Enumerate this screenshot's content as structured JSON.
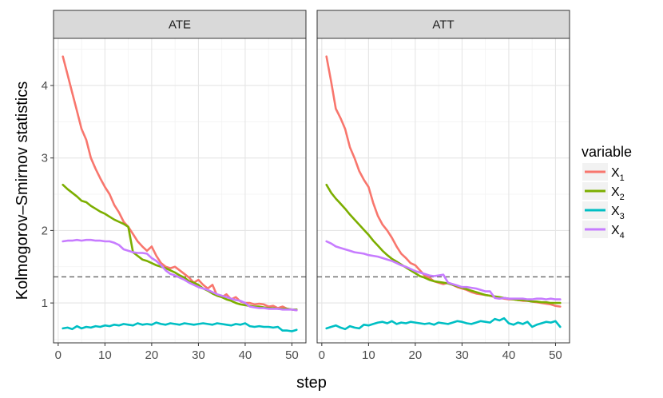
{
  "chart_data": {
    "type": "line",
    "xlabel": "step",
    "ylabel": "Kolmogorov–Smirnov statistics",
    "xlim": [
      -1,
      53
    ],
    "ylim": [
      0.45,
      4.65
    ],
    "x_ticks": [
      0,
      10,
      20,
      30,
      40,
      50
    ],
    "y_ticks": [
      1,
      2,
      3,
      4
    ],
    "threshold": 1.36,
    "legend": {
      "title": "variable",
      "entries": [
        {
          "name": "X",
          "sub": "1",
          "color": "#F8766D"
        },
        {
          "name": "X",
          "sub": "2",
          "color": "#7CAE00"
        },
        {
          "name": "X",
          "sub": "3",
          "color": "#00BFC4"
        },
        {
          "name": "X",
          "sub": "4",
          "color": "#C77CFF"
        }
      ]
    },
    "panels": [
      {
        "title": "ATE",
        "series": [
          {
            "name": "X1",
            "color": "#F8766D",
            "values": [
              4.4,
              4.15,
              3.9,
              3.65,
              3.4,
              3.25,
              3.0,
              2.85,
              2.72,
              2.6,
              2.5,
              2.35,
              2.25,
              2.12,
              2.05,
              1.95,
              1.85,
              1.78,
              1.72,
              1.78,
              1.65,
              1.55,
              1.5,
              1.48,
              1.5,
              1.45,
              1.4,
              1.35,
              1.28,
              1.32,
              1.25,
              1.2,
              1.25,
              1.1,
              1.08,
              1.12,
              1.05,
              1.08,
              1.02,
              1.0,
              1.0,
              0.98,
              0.99,
              0.98,
              0.95,
              0.96,
              0.93,
              0.95,
              0.92,
              0.91,
              0.9
            ]
          },
          {
            "name": "X2",
            "color": "#7CAE00",
            "values": [
              2.63,
              2.57,
              2.52,
              2.47,
              2.41,
              2.39,
              2.34,
              2.3,
              2.26,
              2.23,
              2.19,
              2.15,
              2.12,
              2.09,
              2.05,
              1.7,
              1.65,
              1.6,
              1.58,
              1.55,
              1.52,
              1.5,
              1.48,
              1.45,
              1.42,
              1.38,
              1.35,
              1.3,
              1.28,
              1.25,
              1.2,
              1.17,
              1.13,
              1.1,
              1.08,
              1.05,
              1.03,
              1.0,
              0.98,
              0.97,
              0.96,
              0.95,
              0.95,
              0.94,
              0.93,
              0.93,
              0.92,
              0.92,
              0.92,
              0.91,
              0.91
            ]
          },
          {
            "name": "X3",
            "color": "#00BFC4",
            "values": [
              0.65,
              0.66,
              0.64,
              0.68,
              0.65,
              0.67,
              0.66,
              0.68,
              0.67,
              0.69,
              0.68,
              0.7,
              0.69,
              0.71,
              0.7,
              0.69,
              0.72,
              0.7,
              0.71,
              0.7,
              0.73,
              0.71,
              0.7,
              0.72,
              0.71,
              0.7,
              0.72,
              0.71,
              0.7,
              0.71,
              0.72,
              0.71,
              0.7,
              0.72,
              0.71,
              0.7,
              0.69,
              0.71,
              0.7,
              0.72,
              0.68,
              0.67,
              0.68,
              0.67,
              0.67,
              0.66,
              0.67,
              0.62,
              0.62,
              0.61,
              0.63
            ]
          },
          {
            "name": "X4",
            "color": "#C77CFF",
            "values": [
              1.85,
              1.86,
              1.86,
              1.87,
              1.86,
              1.87,
              1.87,
              1.86,
              1.86,
              1.85,
              1.85,
              1.83,
              1.8,
              1.74,
              1.72,
              1.7,
              1.69,
              1.69,
              1.68,
              1.62,
              1.58,
              1.52,
              1.45,
              1.4,
              1.38,
              1.35,
              1.32,
              1.28,
              1.25,
              1.22,
              1.2,
              1.18,
              1.15,
              1.12,
              1.1,
              1.08,
              1.06,
              1.04,
              1.03,
              1.0,
              0.95,
              0.94,
              0.93,
              0.93,
              0.92,
              0.92,
              0.92,
              0.91,
              0.91,
              0.91,
              0.9
            ]
          }
        ]
      },
      {
        "title": "ATT",
        "series": [
          {
            "name": "X1",
            "color": "#F8766D",
            "values": [
              4.4,
              4.05,
              3.68,
              3.55,
              3.4,
              3.15,
              3.0,
              2.82,
              2.7,
              2.6,
              2.38,
              2.2,
              2.08,
              2.0,
              1.9,
              1.78,
              1.68,
              1.62,
              1.55,
              1.52,
              1.45,
              1.38,
              1.35,
              1.3,
              1.28,
              1.26,
              1.28,
              1.25,
              1.22,
              1.2,
              1.18,
              1.15,
              1.13,
              1.12,
              1.11,
              1.1,
              1.08,
              1.07,
              1.06,
              1.05,
              1.05,
              1.04,
              1.03,
              1.03,
              1.02,
              1.01,
              1.0,
              0.99,
              0.98,
              0.96,
              0.95
            ]
          },
          {
            "name": "X2",
            "color": "#7CAE00",
            "values": [
              2.63,
              2.52,
              2.44,
              2.37,
              2.3,
              2.22,
              2.15,
              2.08,
              2.01,
              1.94,
              1.86,
              1.79,
              1.72,
              1.66,
              1.61,
              1.57,
              1.53,
              1.49,
              1.45,
              1.41,
              1.37,
              1.35,
              1.32,
              1.3,
              1.29,
              1.28,
              1.27,
              1.25,
              1.23,
              1.21,
              1.19,
              1.17,
              1.15,
              1.13,
              1.11,
              1.1,
              1.09,
              1.08,
              1.07,
              1.06,
              1.05,
              1.04,
              1.04,
              1.03,
              1.02,
              1.02,
              1.01,
              1.01,
              1.0,
              1.0,
              1.0
            ]
          },
          {
            "name": "X3",
            "color": "#00BFC4",
            "values": [
              0.65,
              0.67,
              0.69,
              0.66,
              0.64,
              0.68,
              0.66,
              0.65,
              0.7,
              0.69,
              0.71,
              0.73,
              0.74,
              0.72,
              0.75,
              0.71,
              0.73,
              0.72,
              0.74,
              0.73,
              0.72,
              0.71,
              0.72,
              0.7,
              0.73,
              0.72,
              0.71,
              0.73,
              0.75,
              0.74,
              0.72,
              0.71,
              0.73,
              0.75,
              0.74,
              0.73,
              0.78,
              0.76,
              0.79,
              0.72,
              0.7,
              0.73,
              0.71,
              0.74,
              0.67,
              0.7,
              0.72,
              0.74,
              0.73,
              0.75,
              0.67
            ]
          },
          {
            "name": "X4",
            "color": "#C77CFF",
            "values": [
              1.85,
              1.82,
              1.78,
              1.76,
              1.74,
              1.72,
              1.7,
              1.69,
              1.68,
              1.66,
              1.65,
              1.64,
              1.62,
              1.6,
              1.58,
              1.55,
              1.52,
              1.5,
              1.47,
              1.44,
              1.42,
              1.4,
              1.38,
              1.37,
              1.38,
              1.39,
              1.28,
              1.26,
              1.24,
              1.22,
              1.22,
              1.21,
              1.2,
              1.18,
              1.16,
              1.16,
              1.07,
              1.06,
              1.07,
              1.06,
              1.06,
              1.06,
              1.06,
              1.05,
              1.05,
              1.06,
              1.06,
              1.05,
              1.06,
              1.05,
              1.05
            ]
          }
        ]
      }
    ]
  }
}
